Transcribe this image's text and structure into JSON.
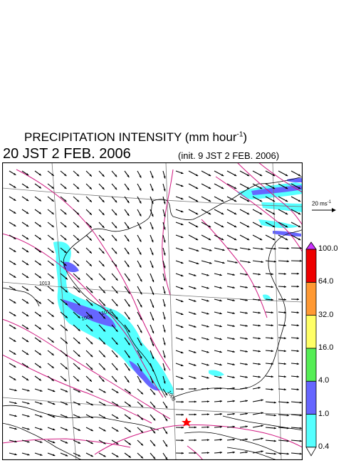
{
  "header": {
    "title_main": "PRECIPITATION INTENSITY (mm hour",
    "title_exp": "-1",
    "title_close": ")",
    "datetime": "20 JST 2 FEB. 2006",
    "init": "(init. 9 JST 2 FEB. 2006)"
  },
  "wind_reference": {
    "label_main": "20 ms",
    "label_exp": "-1",
    "speed": 20
  },
  "colorbar": {
    "levels": [
      "0.4",
      "1.0",
      "4.0",
      "16.0",
      "32.0",
      "64.0",
      "100.0"
    ],
    "colors": [
      "#55ffff",
      "#6666ff",
      "#55ee55",
      "#ffff66",
      "#ff9933",
      "#ee0000",
      "#cc33ff"
    ],
    "under_color": "#ffffff"
  },
  "map": {
    "isobar_labels": [
      "1013",
      "1008",
      "1016",
      "1008"
    ],
    "station_marker": {
      "name": "red-star",
      "color": "#ff0000"
    },
    "colors": {
      "isobar": "#d01880",
      "coast": "#000000",
      "grid": "#777777"
    }
  }
}
